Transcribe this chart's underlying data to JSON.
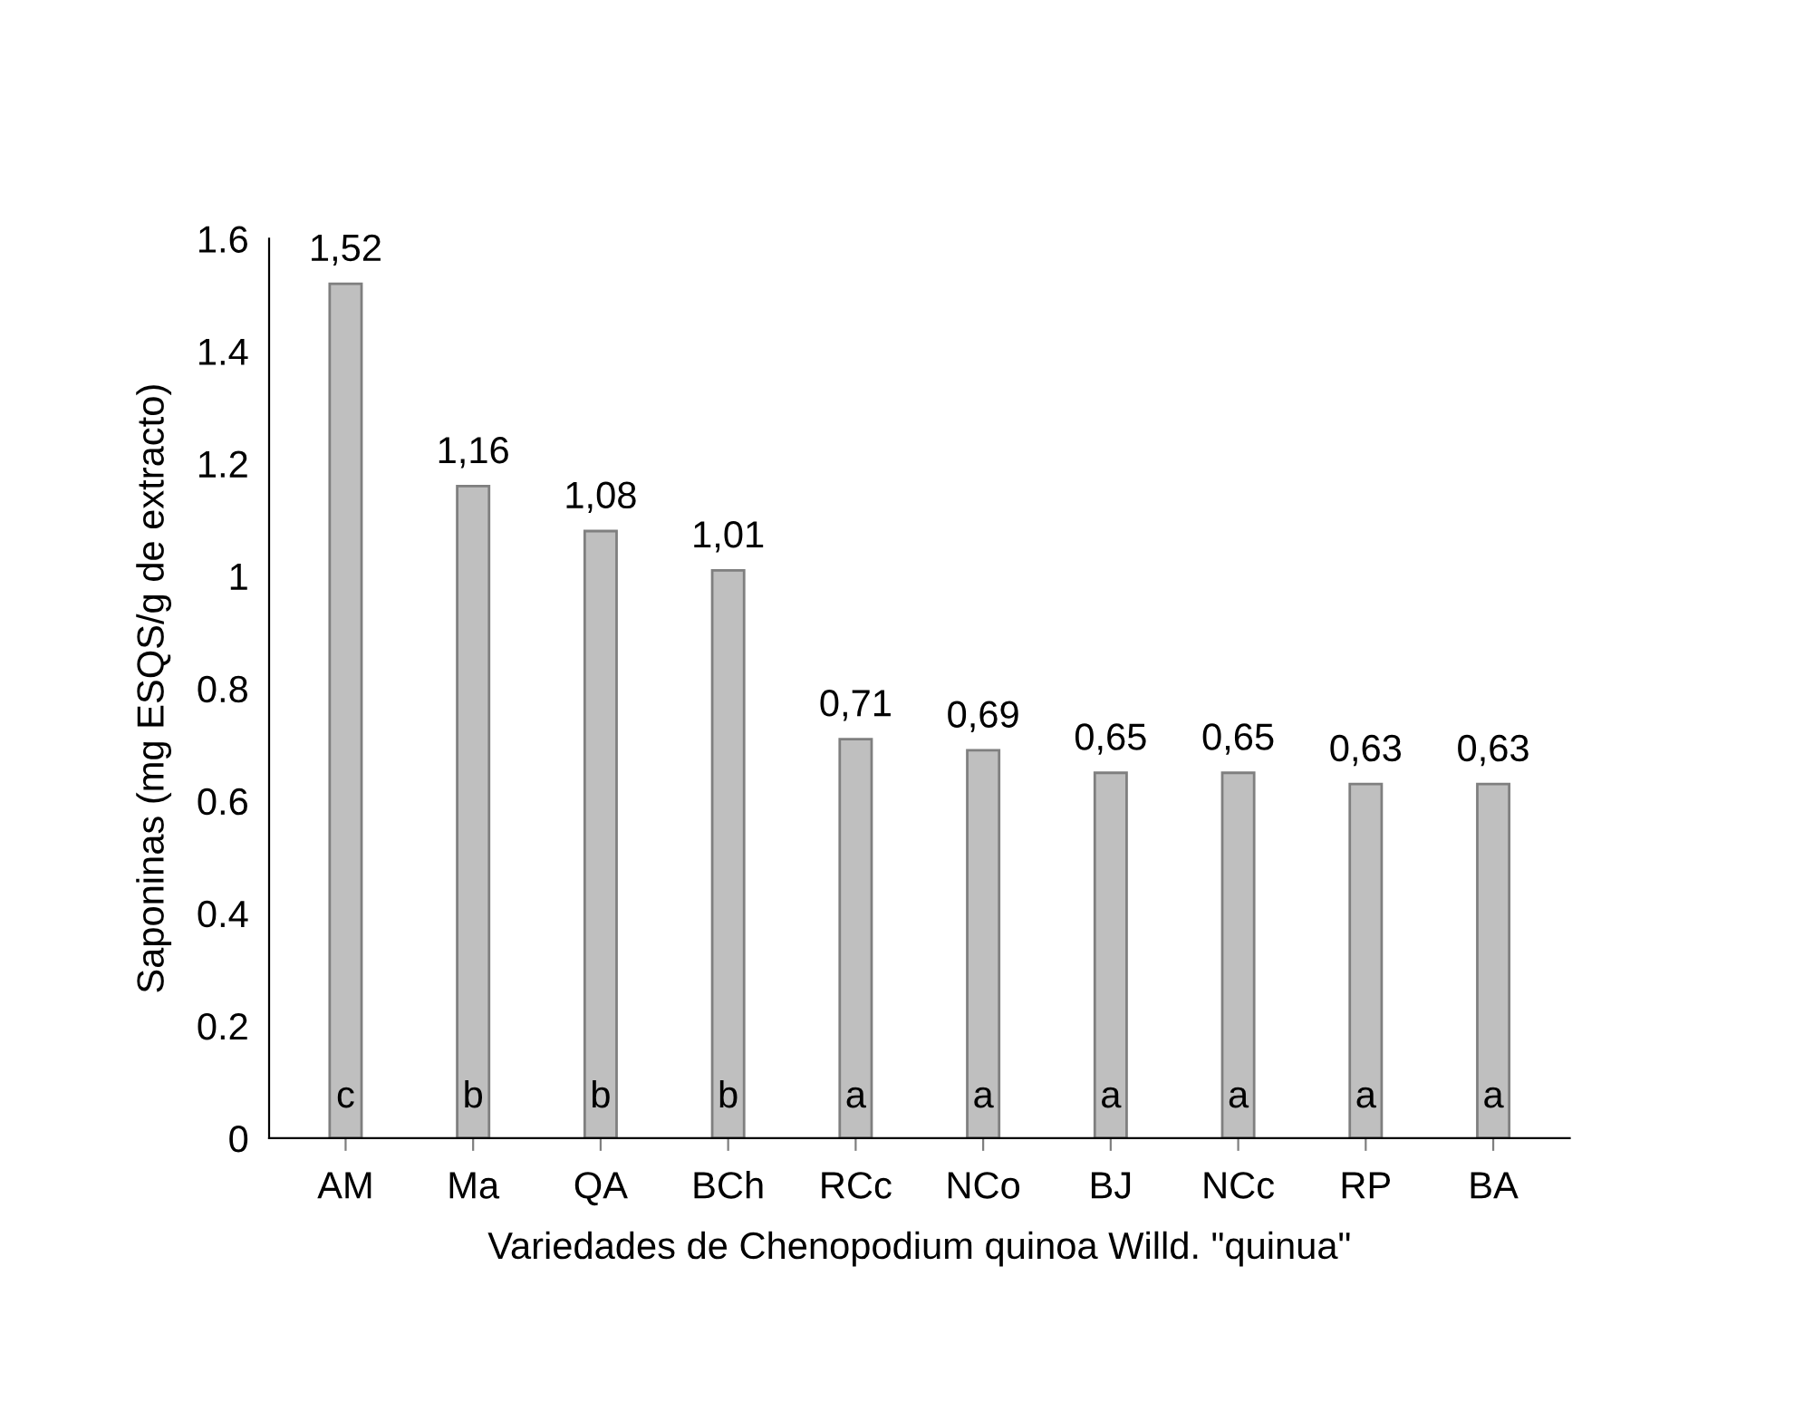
{
  "chart_data": {
    "type": "bar",
    "categories": [
      "AM",
      "Ma",
      "QA",
      "BCh",
      "RCc",
      "NCo",
      "BJ",
      "NCc",
      "RP",
      "BA"
    ],
    "values": [
      1.52,
      1.16,
      1.08,
      1.01,
      0.71,
      0.69,
      0.65,
      0.65,
      0.63,
      0.63
    ],
    "value_labels": [
      "1,52",
      "1,16",
      "1,08",
      "1,01",
      "0,71",
      "0,69",
      "0,65",
      "0,65",
      "0,63",
      "0,63"
    ],
    "color": "#bfbfbf",
    "xlabel": "Variedades de Chenopodium quinoa Willd. \"quinua\"",
    "ylabel": "Saponinas (mg ESQS/g de extracto)",
    "ylim": [
      0,
      1.6
    ],
    "yticks": [
      0,
      0.2,
      0.4,
      0.6,
      0.8,
      {
        "value": 1,
        "label": "1"
      },
      1.2,
      1.4,
      1.6
    ],
    "annotations": [
      "c",
      "b",
      "b",
      "b",
      "a",
      "a",
      "a",
      "a",
      "a",
      "a"
    ],
    "grid": false,
    "legend": false
  }
}
